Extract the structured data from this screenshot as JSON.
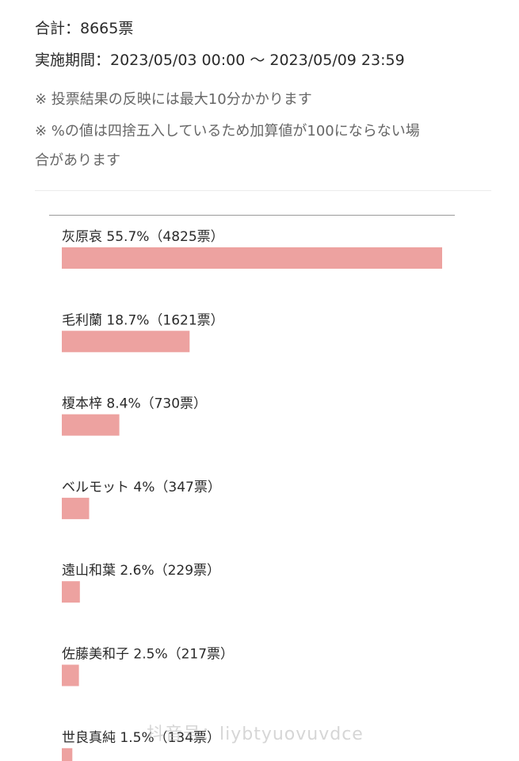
{
  "summary": {
    "total_line": "合計：8665票",
    "period_line": "実施期間：2023/05/03 00:00 〜 2023/05/09 23:59",
    "note_1": "※ 投票結果の反映には最大10分かかります",
    "note_2": "※ %の値は四捨五入しているため加算値が100にならない場",
    "note_2_cont": "合があります"
  },
  "colors": {
    "bar": "#eda2a0"
  },
  "chart_data": {
    "type": "bar",
    "orientation": "horizontal",
    "categories": [
      "灰原哀",
      "毛利蘭",
      "榎本梓",
      "ベルモット",
      "遠山和葉",
      "佐藤美和子",
      "世良真純"
    ],
    "values": [
      4825,
      1621,
      730,
      347,
      229,
      217,
      134
    ],
    "labels": [
      "灰原哀 55.7%（4825票）",
      "毛利蘭 18.7%（1621票）",
      "榎本梓 8.4%（730票）",
      "ベルモット 4%（347票）",
      "遠山和葉 2.6%（229票）",
      "佐藤美和子 2.5%（217票）",
      "世良真純 1.5%（134票）"
    ]
  },
  "watermark": "抖音号：liybtyuovuvdce"
}
